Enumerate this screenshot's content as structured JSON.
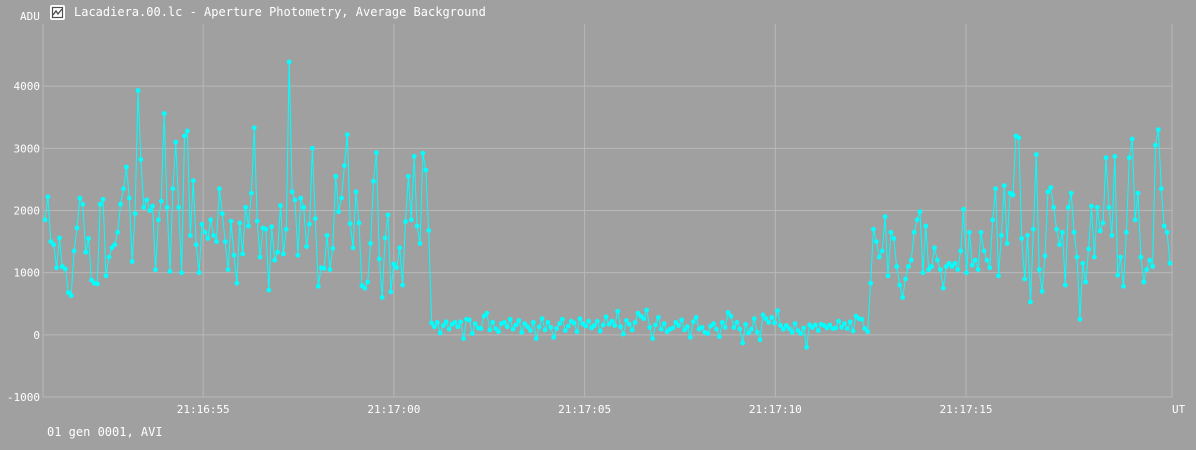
{
  "window": {
    "title": "Lacadiera.00.lc - Aperture Photometry, Average Background",
    "icon": "chart-icon"
  },
  "footer": {
    "info": "01 gen 0001, AVI"
  },
  "colors": {
    "background": "#a0a0a0",
    "grid": "#b8b8b8",
    "series": "#00ffff",
    "text": "#ffffff"
  },
  "chart_data": {
    "type": "line",
    "title": "Lacadiera.00.lc - Aperture Photometry, Average Background",
    "ylabel": "ADU",
    "xlabel": "UT",
    "ylim": [
      -1000,
      5000
    ],
    "xlim": [
      "21:16:50.8",
      "21:17:20.4"
    ],
    "yticks": [
      -1000,
      0,
      1000,
      2000,
      3000,
      4000
    ],
    "xticks": [
      "21:16:55",
      "21:17:00",
      "21:17:05",
      "21:17:10",
      "21:17:15"
    ],
    "grid": true,
    "marker": "dot",
    "series": [
      {
        "values": [
          1850,
          2220,
          1500,
          1450,
          1080,
          1560,
          1100,
          1060,
          680,
          630,
          1350,
          1720,
          2200,
          2100,
          1330,
          1550,
          880,
          830,
          820,
          2100,
          2180,
          950,
          1250,
          1400,
          1450,
          1650,
          2100,
          2350,
          2700,
          2200,
          1180,
          1950,
          3930,
          2820,
          2050,
          2170,
          2000,
          2070,
          1050,
          1850,
          2150,
          3560,
          2050,
          1020,
          2350,
          3100,
          2050,
          1000,
          3200,
          3280,
          1600,
          2480,
          1450,
          1000,
          1780,
          1650,
          1550,
          1850,
          1600,
          1500,
          2350,
          1950,
          1500,
          1050,
          1830,
          1280,
          830,
          1800,
          1300,
          2050,
          1750,
          2280,
          3330,
          1830,
          1250,
          1720,
          1700,
          720,
          1740,
          1200,
          1330,
          2080,
          1300,
          1700,
          4390,
          2300,
          2170,
          1280,
          2200,
          2050,
          1420,
          1780,
          3000,
          1870,
          780,
          1080,
          1070,
          1600,
          1050,
          1390,
          2550,
          1980,
          2200,
          2720,
          3220,
          1790,
          1400,
          2300,
          1800,
          790,
          750,
          850,
          1470,
          2470,
          2930,
          1220,
          600,
          1560,
          1930,
          690,
          1140,
          1080,
          1400,
          800,
          1820,
          2550,
          1850,
          2870,
          1750,
          1470,
          2920,
          2650,
          1680,
          190,
          130,
          200,
          30,
          150,
          210,
          90,
          170,
          200,
          130,
          210,
          -60,
          250,
          240,
          20,
          180,
          110,
          100,
          300,
          350,
          80,
          200,
          100,
          50,
          180,
          200,
          130,
          250,
          90,
          160,
          230,
          40,
          180,
          130,
          70,
          200,
          -60,
          130,
          260,
          80,
          200,
          120,
          -40,
          100,
          180,
          250,
          70,
          140,
          220,
          190,
          50,
          260,
          180,
          140,
          220,
          110,
          150,
          220,
          60,
          160,
          290,
          170,
          220,
          150,
          380,
          130,
          10,
          230,
          170,
          80,
          200,
          350,
          300,
          260,
          400,
          120,
          -60,
          160,
          280,
          90,
          180,
          50,
          90,
          110,
          200,
          150,
          240,
          80,
          130,
          -40,
          210,
          280,
          90,
          120,
          40,
          20,
          140,
          180,
          90,
          -30,
          200,
          120,
          360,
          300,
          120,
          200,
          90,
          -130,
          170,
          30,
          90,
          260,
          40,
          -80,
          320,
          260,
          200,
          280,
          190,
          390,
          150,
          90,
          150,
          100,
          40,
          180,
          70,
          20,
          110,
          -200,
          160,
          120,
          160,
          70,
          170,
          150,
          110,
          160,
          100,
          110,
          220,
          120,
          180,
          100,
          210,
          60,
          300,
          260,
          250,
          100,
          50,
          830,
          1700,
          1500,
          1250,
          1350,
          1900,
          950,
          1650,
          1550,
          1100,
          800,
          600,
          900,
          1100,
          1200,
          1650,
          1850,
          1980,
          1000,
          1750,
          1050,
          1100,
          1400,
          1200,
          1050,
          750,
          1100,
          1150,
          1100,
          1150,
          1050,
          1350,
          2020,
          1000,
          1650,
          1120,
          1200,
          1050,
          1650,
          1350,
          1200,
          1080,
          1850,
          2350,
          950,
          1600,
          2400,
          1470,
          2280,
          2250,
          3200,
          3170,
          1550,
          900,
          1600,
          530,
          1700,
          2900,
          1050,
          700,
          1270,
          2300,
          2370,
          2050,
          1700,
          1450,
          1650,
          800,
          2050,
          2280,
          1650,
          1250,
          250,
          1150,
          850,
          1380,
          2070,
          1250,
          2050,
          1670,
          1800,
          2850,
          2050,
          1600,
          2870,
          960,
          1250,
          780,
          1650,
          2850,
          3150,
          1850,
          2280,
          1250,
          850,
          1050,
          1200,
          1100,
          3050,
          3300,
          2350,
          1750,
          1650,
          1150
        ]
      }
    ]
  }
}
